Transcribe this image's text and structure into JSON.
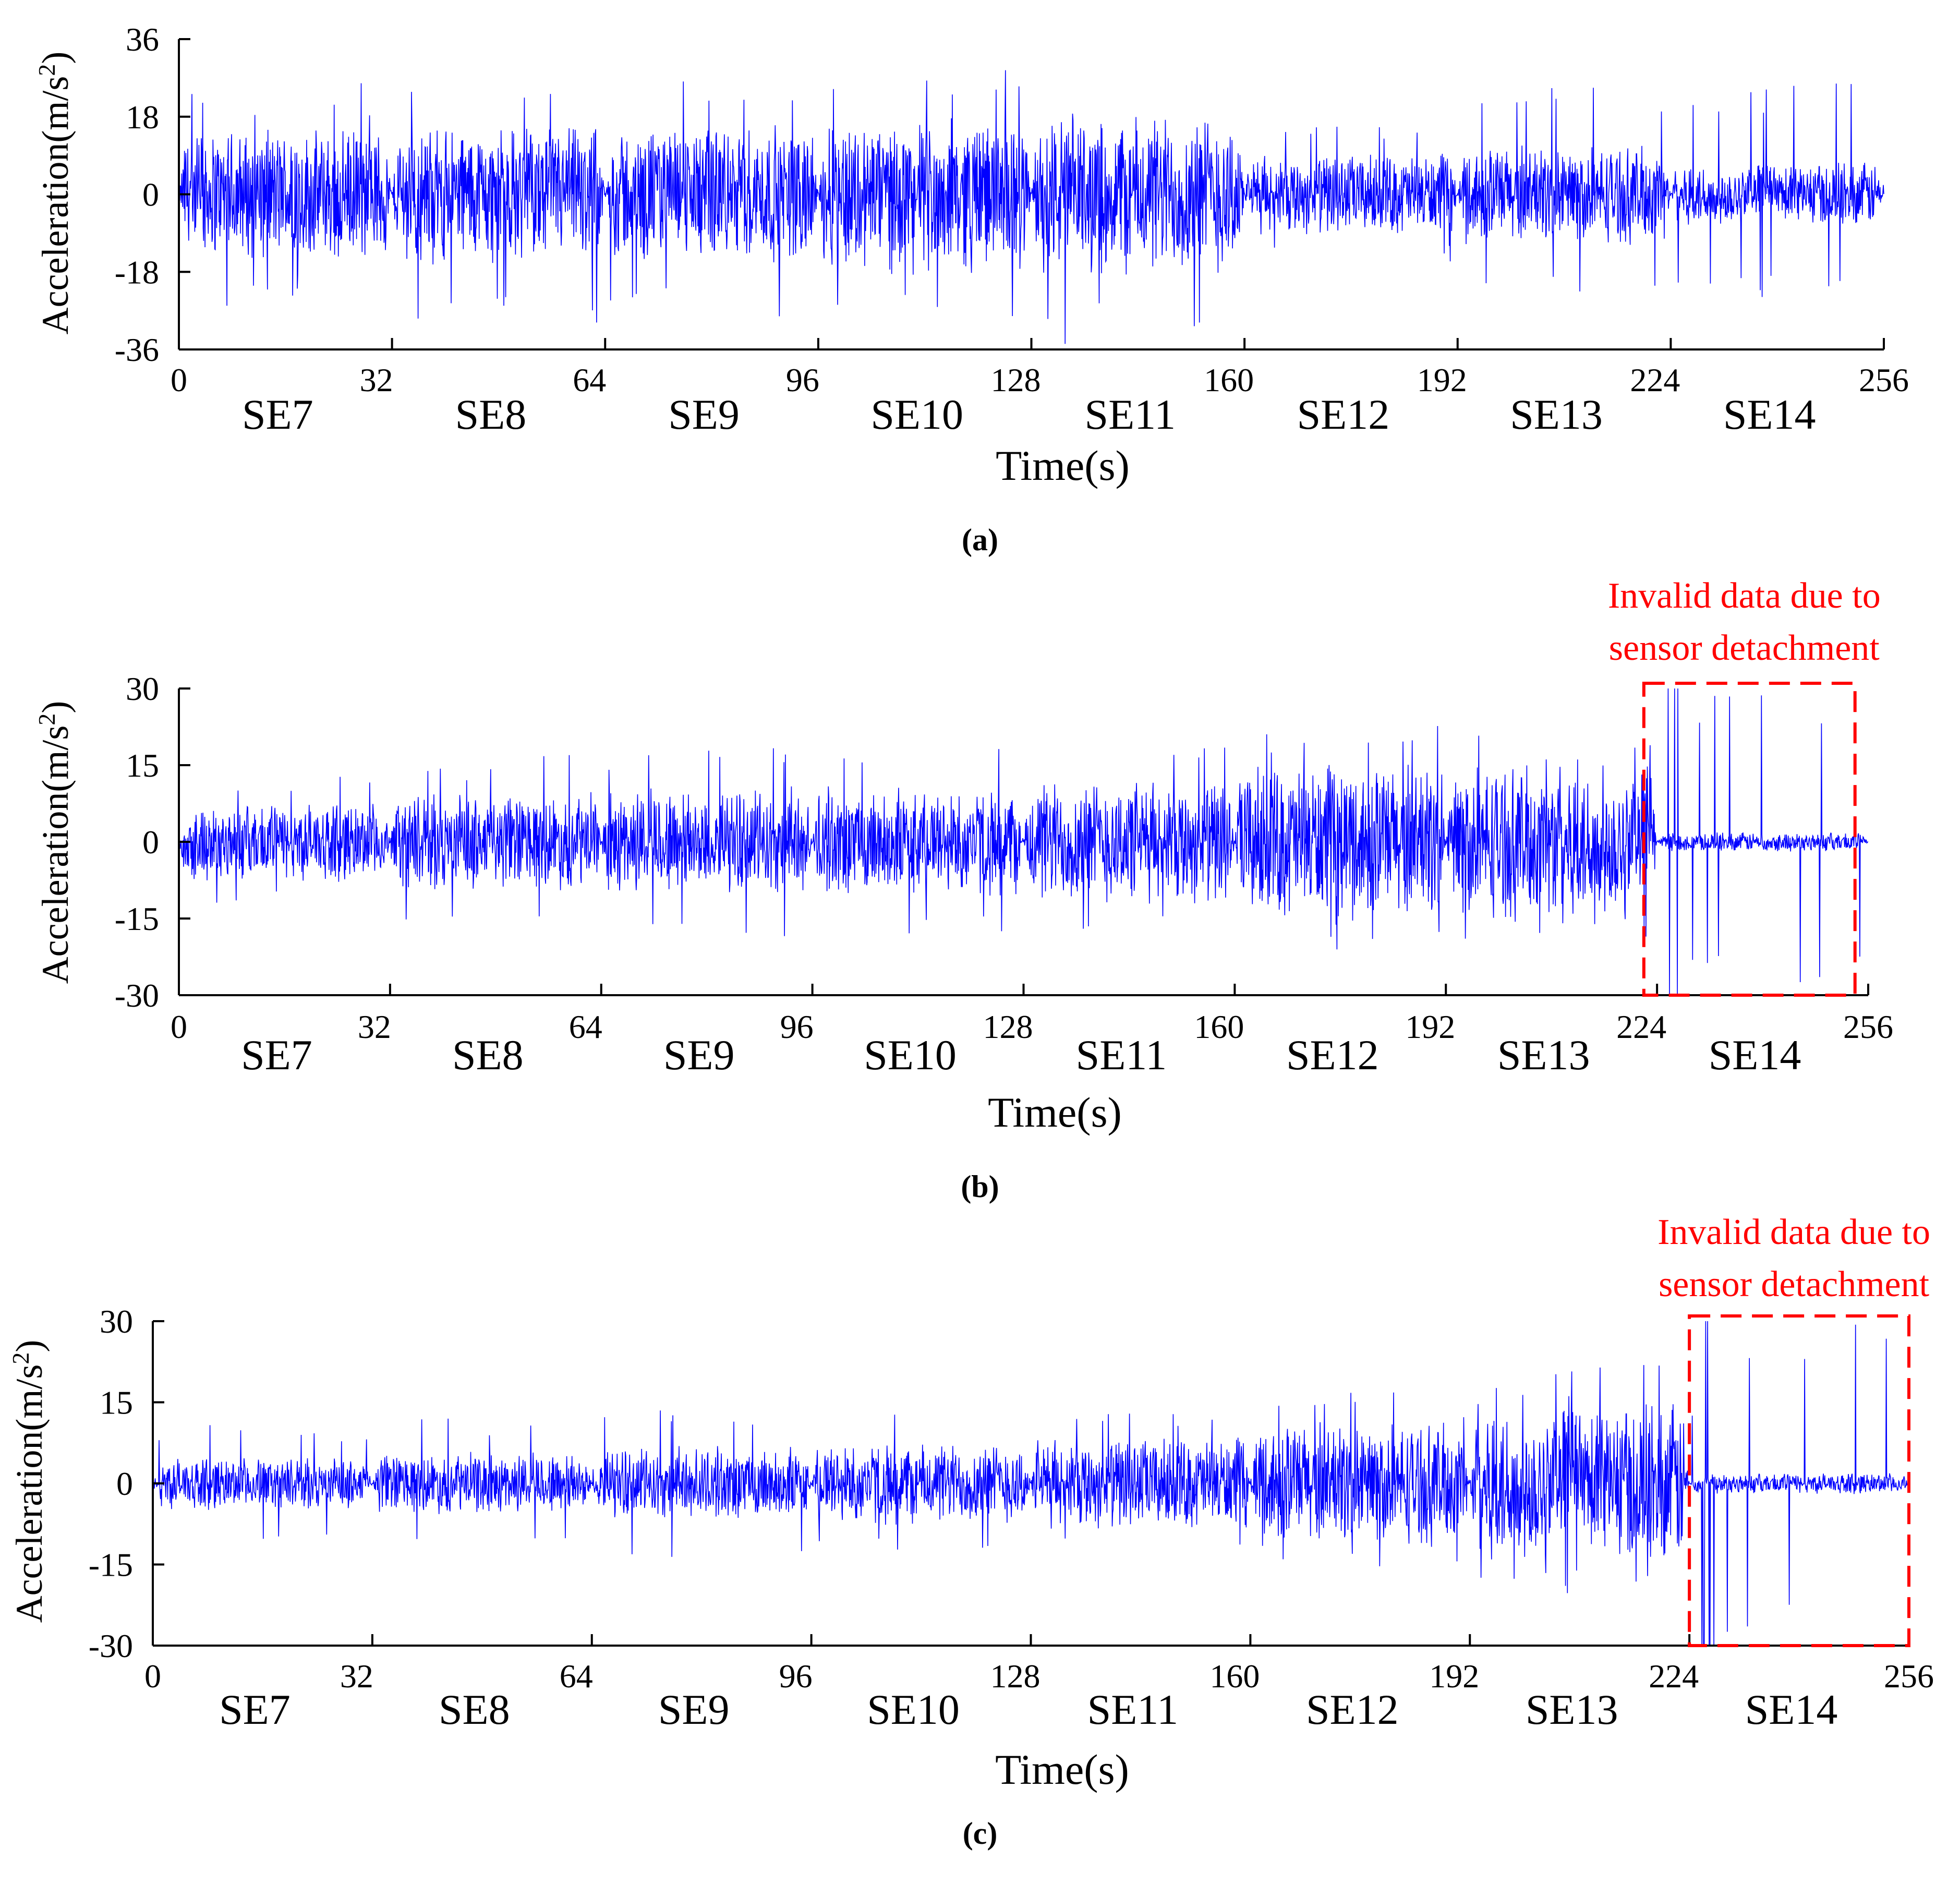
{
  "chart_data": [
    {
      "type": "line",
      "panel": "a",
      "panel_label": "(a)",
      "xlabel": "Time(s)",
      "ylabel_main": "Acceleration(",
      "ylabel_unit": "m/s",
      "ylabel_exp": "2",
      "ylabel_close": ")",
      "xlim": [
        0,
        256
      ],
      "ylim": [
        -36,
        36
      ],
      "xticks": [
        0,
        32,
        64,
        96,
        128,
        160,
        192,
        224,
        256
      ],
      "xtick_labels": [
        "0",
        "32",
        "64",
        "96",
        "128",
        "160",
        "192",
        "224",
        "256"
      ],
      "yticks": [
        36,
        18,
        0,
        -18,
        -36
      ],
      "ytick_labels": [
        "36",
        "18",
        "0",
        "-18",
        "-36"
      ],
      "segment_labels": [
        "SE7",
        "SE8",
        "SE9",
        "SE10",
        "SE11",
        "SE12",
        "SE13",
        "SE14"
      ],
      "segment_amplitude": [
        16,
        17,
        17,
        19,
        20,
        10,
        12,
        8
      ],
      "segment_peak": [
        26,
        30,
        29,
        32,
        36,
        17,
        25,
        27
      ],
      "color": "#0000ff",
      "annotation": null
    },
    {
      "type": "line",
      "panel": "b",
      "panel_label": "(b)",
      "xlabel": "Time(s)",
      "ylabel_main": "Acceleration(",
      "ylabel_unit": "m/s",
      "ylabel_exp": "2",
      "ylabel_close": ")",
      "xlim": [
        0,
        256
      ],
      "ylim": [
        -30,
        30
      ],
      "xticks": [
        0,
        32,
        64,
        96,
        128,
        160,
        192,
        224,
        256
      ],
      "xtick_labels": [
        "0",
        "32",
        "64",
        "96",
        "128",
        "160",
        "192",
        "224",
        "256"
      ],
      "yticks": [
        30,
        15,
        0,
        -15,
        -30
      ],
      "ytick_labels": [
        "30",
        "15",
        "0",
        "-15",
        "-30"
      ],
      "segment_labels": [
        "SE7",
        "SE8",
        "SE9",
        "SE10",
        "SE11",
        "SE12",
        "SE13",
        "SE14"
      ],
      "segment_amplitude": [
        8,
        10,
        11,
        11,
        13,
        16,
        16,
        2
      ],
      "segment_peak": [
        13,
        17,
        19,
        20,
        20,
        23,
        21,
        30
      ],
      "color": "#0000ff",
      "annotation": {
        "line1": "Invalid data due to",
        "line2": "sensor detachment",
        "x_range": [
          222,
          254
        ],
        "color": "#ff0000"
      }
    },
    {
      "type": "line",
      "panel": "c",
      "panel_label": "(c)",
      "xlabel": "Time(s)",
      "ylabel_main": "Acceleration(",
      "ylabel_unit": "m/s",
      "ylabel_exp": "2",
      "ylabel_close": ")",
      "xlim": [
        0,
        256
      ],
      "ylim": [
        -30,
        30
      ],
      "xticks": [
        0,
        32,
        64,
        96,
        128,
        160,
        192,
        224,
        256
      ],
      "xtick_labels": [
        "0",
        "32",
        "64",
        "96",
        "128",
        "160",
        "192",
        "224",
        "256"
      ],
      "yticks": [
        30,
        15,
        0,
        -15,
        -30
      ],
      "ytick_labels": [
        "30",
        "15",
        "0",
        "-15",
        "-30"
      ],
      "segment_labels": [
        "SE7",
        "SE8",
        "SE9",
        "SE10",
        "SE11",
        "SE12",
        "SE13",
        "SE14"
      ],
      "segment_amplitude": [
        5,
        6,
        7,
        8,
        9,
        12,
        16,
        2
      ],
      "segment_peak": [
        11,
        12,
        14,
        14,
        14,
        17,
        23,
        30
      ],
      "color": "#0000ff",
      "annotation": {
        "line1": "Invalid data due to",
        "line2": "sensor detachment",
        "x_range": [
          224,
          256
        ],
        "color": "#ff0000"
      }
    }
  ]
}
